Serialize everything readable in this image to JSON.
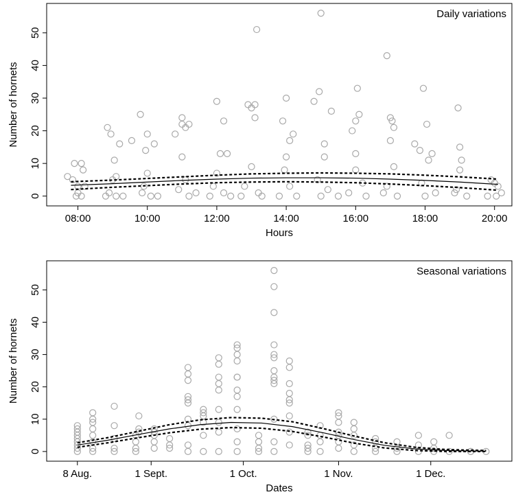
{
  "chart_data": [
    {
      "type": "scatter",
      "annotation": "Daily variations",
      "xlabel": "Hours",
      "ylabel": "Number of hornets",
      "xlim": [
        7.1,
        20.5
      ],
      "ylim": [
        -3,
        59
      ],
      "xticks": [
        {
          "value": 8,
          "label": "08:00"
        },
        {
          "value": 10,
          "label": "10:00"
        },
        {
          "value": 12,
          "label": "12:00"
        },
        {
          "value": 14,
          "label": "14:00"
        },
        {
          "value": 16,
          "label": "16:00"
        },
        {
          "value": 18,
          "label": "18:00"
        },
        {
          "value": 20,
          "label": "20:00"
        }
      ],
      "yticks": [
        0,
        10,
        20,
        30,
        40,
        50
      ],
      "color": "#a8a8a8",
      "x": [
        7.7,
        7.85,
        7.9,
        8.0,
        8.1,
        8.15,
        8.2,
        8.0,
        7.95,
        8.1,
        8.85,
        8.95,
        9.0,
        8.9,
        9.1,
        9.2,
        9.1,
        9.05,
        8.8,
        9.3,
        9.55,
        9.8,
        9.95,
        10.0,
        10.2,
        10.0,
        9.9,
        10.1,
        9.85,
        10.3,
        10.8,
        11.0,
        11.0,
        11.1,
        11.2,
        11.0,
        11.1,
        10.9,
        11.2,
        11.4,
        12.0,
        12.1,
        12.2,
        12.3,
        12.0,
        11.9,
        12.2,
        12.4,
        11.8,
        12.9,
        13.0,
        13.1,
        13.1,
        13.15,
        13.0,
        12.8,
        13.2,
        13.3,
        12.7,
        13.9,
        14.0,
        14.1,
        14.2,
        14.0,
        13.95,
        14.1,
        13.8,
        14.3,
        14.8,
        14.95,
        15.0,
        15.1,
        15.1,
        15.3,
        14.9,
        15.2,
        15.0,
        15.5,
        15.9,
        16.0,
        16.05,
        16.1,
        16.0,
        16.0,
        16.2,
        15.8,
        16.3,
        16.9,
        17.0,
        17.05,
        17.1,
        17.0,
        17.1,
        16.9,
        17.2,
        16.8,
        17.7,
        17.85,
        17.95,
        18.05,
        18.1,
        18.2,
        17.9,
        18.0,
        18.3,
        18.95,
        19.0,
        19.05,
        19.0,
        18.9,
        19.2,
        18.85,
        19.9,
        20.0,
        20.1,
        20.2,
        19.8,
        20.05
      ],
      "values": [
        6,
        5,
        10,
        3,
        10,
        8,
        3,
        1,
        0,
        0,
        21,
        19,
        5,
        1,
        0,
        16,
        6,
        11,
        0,
        0,
        17,
        25,
        14,
        19,
        16,
        7,
        3,
        0,
        1,
        0,
        19,
        24,
        22,
        21,
        22,
        12,
        5,
        2,
        0,
        1,
        29,
        13,
        23,
        13,
        7,
        3,
        1,
        0,
        0,
        28,
        27,
        28,
        24,
        51,
        9,
        3,
        1,
        0,
        0,
        23,
        30,
        17,
        19,
        12,
        8,
        3,
        0,
        0,
        29,
        32,
        56,
        16,
        12,
        26,
        5,
        2,
        0,
        0,
        20,
        23,
        33,
        25,
        13,
        8,
        4,
        1,
        0,
        43,
        24,
        23,
        21,
        17,
        9,
        3,
        0,
        1,
        16,
        14,
        33,
        22,
        11,
        13,
        4,
        0,
        1,
        27,
        15,
        11,
        8,
        2,
        0,
        1,
        5,
        4,
        3,
        1,
        0,
        0
      ],
      "fit": {
        "x": [
          7.8,
          9,
          10,
          11,
          12,
          13,
          14,
          15,
          16,
          17,
          18,
          19,
          20.1
        ],
        "values": [
          3.3,
          3.8,
          4.3,
          4.8,
          5.2,
          5.5,
          5.6,
          5.6,
          5.5,
          5.2,
          4.8,
          4.3,
          3.6
        ],
        "upper": [
          4.4,
          4.9,
          5.4,
          5.9,
          6.4,
          6.8,
          7.0,
          7.1,
          7.0,
          6.8,
          6.4,
          5.9,
          5.2
        ],
        "lower": [
          2.0,
          2.7,
          3.2,
          3.7,
          4.1,
          4.3,
          4.4,
          4.3,
          4.1,
          3.7,
          3.2,
          2.6,
          1.8
        ]
      }
    },
    {
      "type": "scatter",
      "annotation": "Seasonal variations",
      "xlabel": "Dates",
      "ylabel": "Number of hornets",
      "xlim": [
        -10,
        141.4
      ],
      "ylim": [
        -3,
        59
      ],
      "xticks": [
        {
          "value": 0,
          "label": "8 Aug."
        },
        {
          "value": 24,
          "label": "1 Sept."
        },
        {
          "value": 54,
          "label": "1 Oct."
        },
        {
          "value": 85,
          "label": "1 Nov."
        },
        {
          "value": 115,
          "label": "1 Dec."
        }
      ],
      "yticks": [
        0,
        10,
        20,
        30,
        40,
        50
      ],
      "color": "#a8a8a8",
      "x": [
        0,
        0,
        0,
        0,
        0,
        0,
        0,
        0,
        0,
        5,
        5,
        5,
        5,
        5,
        5,
        5,
        5,
        12,
        12,
        12,
        12,
        12,
        19,
        19,
        19,
        19,
        20,
        20,
        20,
        25,
        25,
        25,
        25,
        25,
        30,
        30,
        30,
        36,
        36,
        36,
        36,
        36,
        36,
        36,
        36,
        36,
        36,
        41,
        41,
        41,
        41,
        41,
        41,
        46,
        46,
        46,
        46,
        46,
        46,
        46,
        46,
        46,
        52,
        52,
        52,
        52,
        52,
        52,
        52,
        52,
        52,
        52,
        52,
        52,
        59,
        59,
        59,
        59,
        64,
        64,
        64,
        64,
        64,
        64,
        64,
        64,
        64,
        64,
        64,
        64,
        64,
        69,
        69,
        69,
        69,
        69,
        69,
        69,
        69,
        69,
        75,
        75,
        75,
        75,
        75,
        79,
        79,
        79,
        79,
        85,
        85,
        85,
        85,
        85,
        85,
        85,
        90,
        90,
        90,
        90,
        90,
        97,
        97,
        97,
        97,
        104,
        104,
        104,
        111,
        111,
        111,
        116,
        116,
        116,
        121,
        121,
        128,
        128,
        133
      ],
      "values": [
        8,
        7,
        6,
        5,
        4,
        3,
        2,
        1,
        0,
        12,
        10,
        9,
        7,
        5,
        3,
        1,
        0,
        14,
        8,
        4,
        1,
        0,
        5,
        3,
        1,
        0,
        11,
        7,
        6,
        7,
        6,
        5,
        3,
        1,
        4,
        2,
        1,
        26,
        24,
        22,
        17,
        16,
        15,
        10,
        8,
        2,
        0,
        13,
        12,
        11,
        9,
        5,
        0,
        29,
        27,
        23,
        21,
        19,
        13,
        9,
        6,
        0,
        33,
        32,
        30,
        28,
        23,
        23,
        19,
        17,
        13,
        7,
        3,
        0,
        5,
        3,
        1,
        0,
        56,
        51,
        43,
        33,
        30,
        29,
        25,
        23,
        22,
        21,
        10,
        3,
        0,
        28,
        26,
        21,
        18,
        16,
        15,
        11,
        6,
        2,
        6,
        5,
        2,
        1,
        0,
        8,
        5,
        3,
        0,
        12,
        11,
        9,
        6,
        5,
        3,
        1,
        9,
        7,
        5,
        2,
        0,
        4,
        3,
        1,
        0,
        3,
        1,
        0,
        5,
        2,
        0,
        3,
        1,
        0,
        5,
        0,
        0,
        0,
        0
      ],
      "fit": {
        "x": [
          0,
          10,
          20,
          30,
          40,
          50,
          60,
          70,
          80,
          90,
          100,
          110,
          120,
          133
        ],
        "values": [
          2,
          3.5,
          5.3,
          7,
          8.3,
          9,
          8.8,
          7.7,
          5.8,
          3.7,
          1.9,
          0.8,
          0.3,
          0.1
        ],
        "upper": [
          2.7,
          4.3,
          6.3,
          8.3,
          9.8,
          10.5,
          10.3,
          9.2,
          7.1,
          4.8,
          2.7,
          1.3,
          0.6,
          0.3
        ],
        "lower": [
          1.3,
          2.7,
          4.3,
          5.8,
          6.9,
          7.4,
          7.2,
          6.2,
          4.5,
          2.6,
          1.1,
          0.3,
          0,
          0
        ]
      }
    }
  ]
}
